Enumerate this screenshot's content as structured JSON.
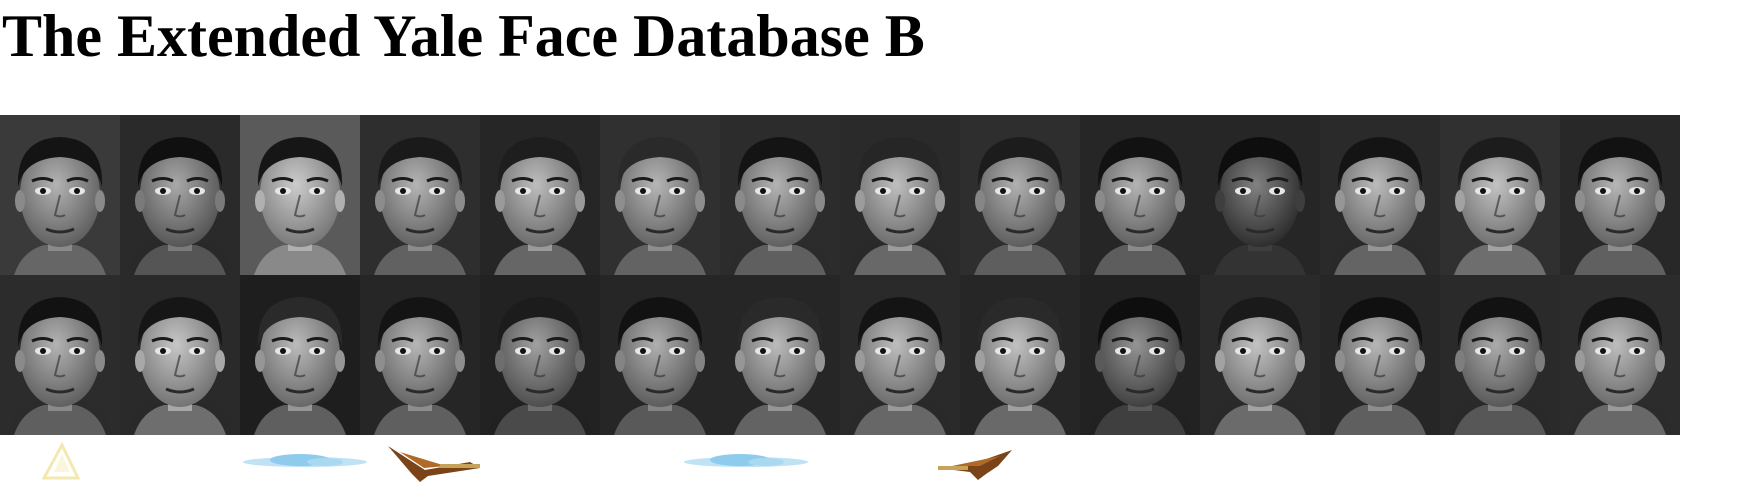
{
  "page": {
    "title": "The Extended Yale Face Database B"
  },
  "face_grid": {
    "rows": 2,
    "columns": 14,
    "image_style": "grayscale frontal face photographs"
  },
  "faces": [
    {
      "tone": "#8a8a8a",
      "hair": "#141414",
      "bg": "#3a3a3a"
    },
    {
      "tone": "#7a7a7a",
      "hair": "#101010",
      "bg": "#2a2a2a"
    },
    {
      "tone": "#b0b0b0",
      "hair": "#161616",
      "bg": "#5a5a5a"
    },
    {
      "tone": "#8c8c8c",
      "hair": "#1a1a1a",
      "bg": "#2e2e2e"
    },
    {
      "tone": "#9a9a9a",
      "hair": "#1e1e1e",
      "bg": "#262626"
    },
    {
      "tone": "#8e8e8e",
      "hair": "#2a2a2a",
      "bg": "#303030"
    },
    {
      "tone": "#8a8a8a",
      "hair": "#141414",
      "bg": "#2c2c2c"
    },
    {
      "tone": "#9c9c9c",
      "hair": "#262626",
      "bg": "#2a2a2a"
    },
    {
      "tone": "#868686",
      "hair": "#1c1c1c",
      "bg": "#2e2e2e"
    },
    {
      "tone": "#8a8a8a",
      "hair": "#121212",
      "bg": "#262626"
    },
    {
      "tone": "#3e3e3e",
      "hair": "#0e0e0e",
      "bg": "#262626"
    },
    {
      "tone": "#969696",
      "hair": "#141414",
      "bg": "#2a2a2a"
    },
    {
      "tone": "#a2a2a2",
      "hair": "#1c1c1c",
      "bg": "#303030"
    },
    {
      "tone": "#8e8e8e",
      "hair": "#121212",
      "bg": "#282828"
    },
    {
      "tone": "#8a8a8a",
      "hair": "#121212",
      "bg": "#2c2c2c"
    },
    {
      "tone": "#a8a8a8",
      "hair": "#161616",
      "bg": "#2a2a2a"
    },
    {
      "tone": "#969696",
      "hair": "#2a2a2a",
      "bg": "#1e1e1e"
    },
    {
      "tone": "#8e8e8e",
      "hair": "#141414",
      "bg": "#262626"
    },
    {
      "tone": "#6e6e6e",
      "hair": "#1c1c1c",
      "bg": "#222222"
    },
    {
      "tone": "#848484",
      "hair": "#121212",
      "bg": "#262626"
    },
    {
      "tone": "#969696",
      "hair": "#2a2a2a",
      "bg": "#262626"
    },
    {
      "tone": "#9a9a9a",
      "hair": "#141414",
      "bg": "#2a2a2a"
    },
    {
      "tone": "#a0a0a0",
      "hair": "#2a2a2a",
      "bg": "#262626"
    },
    {
      "tone": "#5a5a5a",
      "hair": "#0e0e0e",
      "bg": "#222222"
    },
    {
      "tone": "#a2a2a2",
      "hair": "#1a1a1a",
      "bg": "#2a2a2a"
    },
    {
      "tone": "#8e8e8e",
      "hair": "#101010",
      "bg": "#262626"
    },
    {
      "tone": "#7e7e7e",
      "hair": "#121212",
      "bg": "#2a2a2a"
    },
    {
      "tone": "#9a9a9a",
      "hair": "#141414",
      "bg": "#2c2c2c"
    }
  ],
  "decor": {
    "items": [
      "triangle-icon",
      "cloud-icon",
      "bird-icon",
      "cloud-icon",
      "bird-icon"
    ],
    "colors": {
      "triangle": "#f5eec0",
      "cloud": "#9fd3ef",
      "bird": "#6b3a12"
    }
  }
}
